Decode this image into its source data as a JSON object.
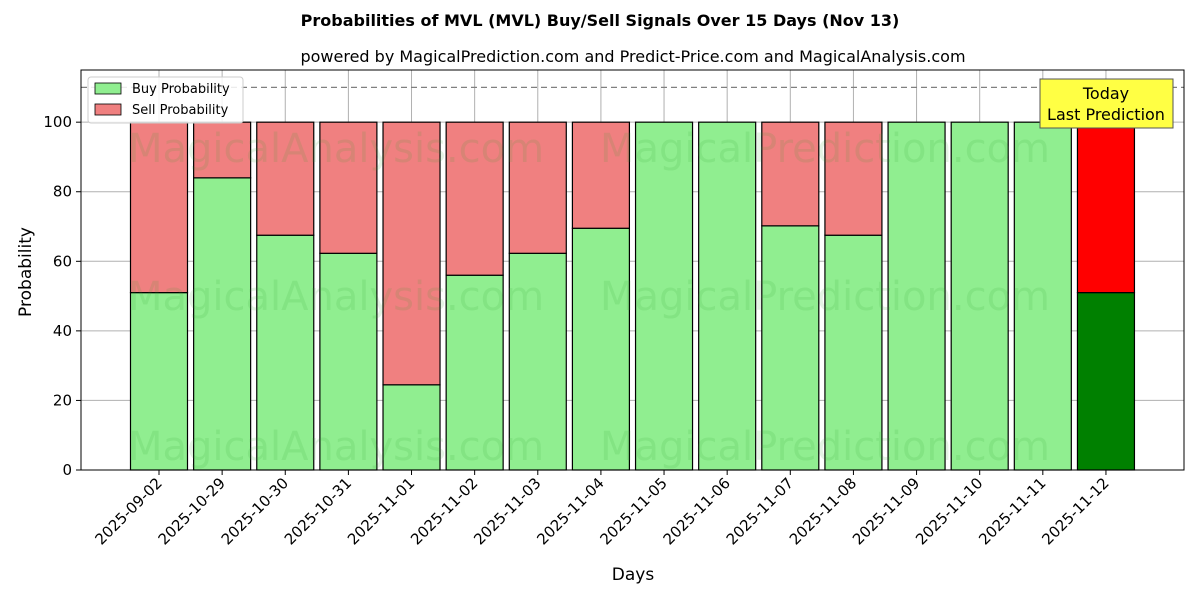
{
  "chart_data": {
    "type": "bar",
    "stacked": true,
    "title": "Probabilities of MVL (MVL) Buy/Sell Signals Over 15 Days (Nov 13)",
    "subtitle": "powered by MagicalPrediction.com and Predict-Price.com and MagicalAnalysis.com",
    "xlabel": "Days",
    "ylabel": "Probability",
    "ylim": [
      0,
      115
    ],
    "yticks": [
      0,
      20,
      40,
      60,
      80,
      100
    ],
    "grid": true,
    "legend_placement": "top-left",
    "reference_line": 110,
    "categories": [
      "2025-09-02",
      "2025-10-29",
      "2025-10-30",
      "2025-10-31",
      "2025-11-01",
      "2025-11-02",
      "2025-11-03",
      "2025-11-04",
      "2025-11-05",
      "2025-11-06",
      "2025-11-07",
      "2025-11-08",
      "2025-11-09",
      "2025-11-10",
      "2025-11-11",
      "2025-11-12"
    ],
    "series": [
      {
        "name": "Buy Probability",
        "color": "#90ee90",
        "values": [
          51,
          84,
          67.5,
          62.3,
          24.5,
          56,
          62.3,
          69.5,
          100,
          100,
          70.2,
          67.5,
          100,
          100,
          100,
          51
        ]
      },
      {
        "name": "Sell Probability",
        "color": "#f08080",
        "values": [
          49,
          16,
          32.5,
          37.7,
          75.5,
          44,
          37.7,
          30.5,
          0,
          0,
          29.8,
          32.5,
          0,
          0,
          0,
          49
        ]
      }
    ],
    "highlight": {
      "index": 15,
      "buy_color": "#008000",
      "sell_color": "#ff0000"
    },
    "annotation": {
      "lines": [
        "Today",
        "Last Prediction"
      ],
      "background": "#ffff44"
    },
    "watermarks": [
      "MagicalAnalysis.com",
      "MagicalPrediction.com"
    ]
  }
}
